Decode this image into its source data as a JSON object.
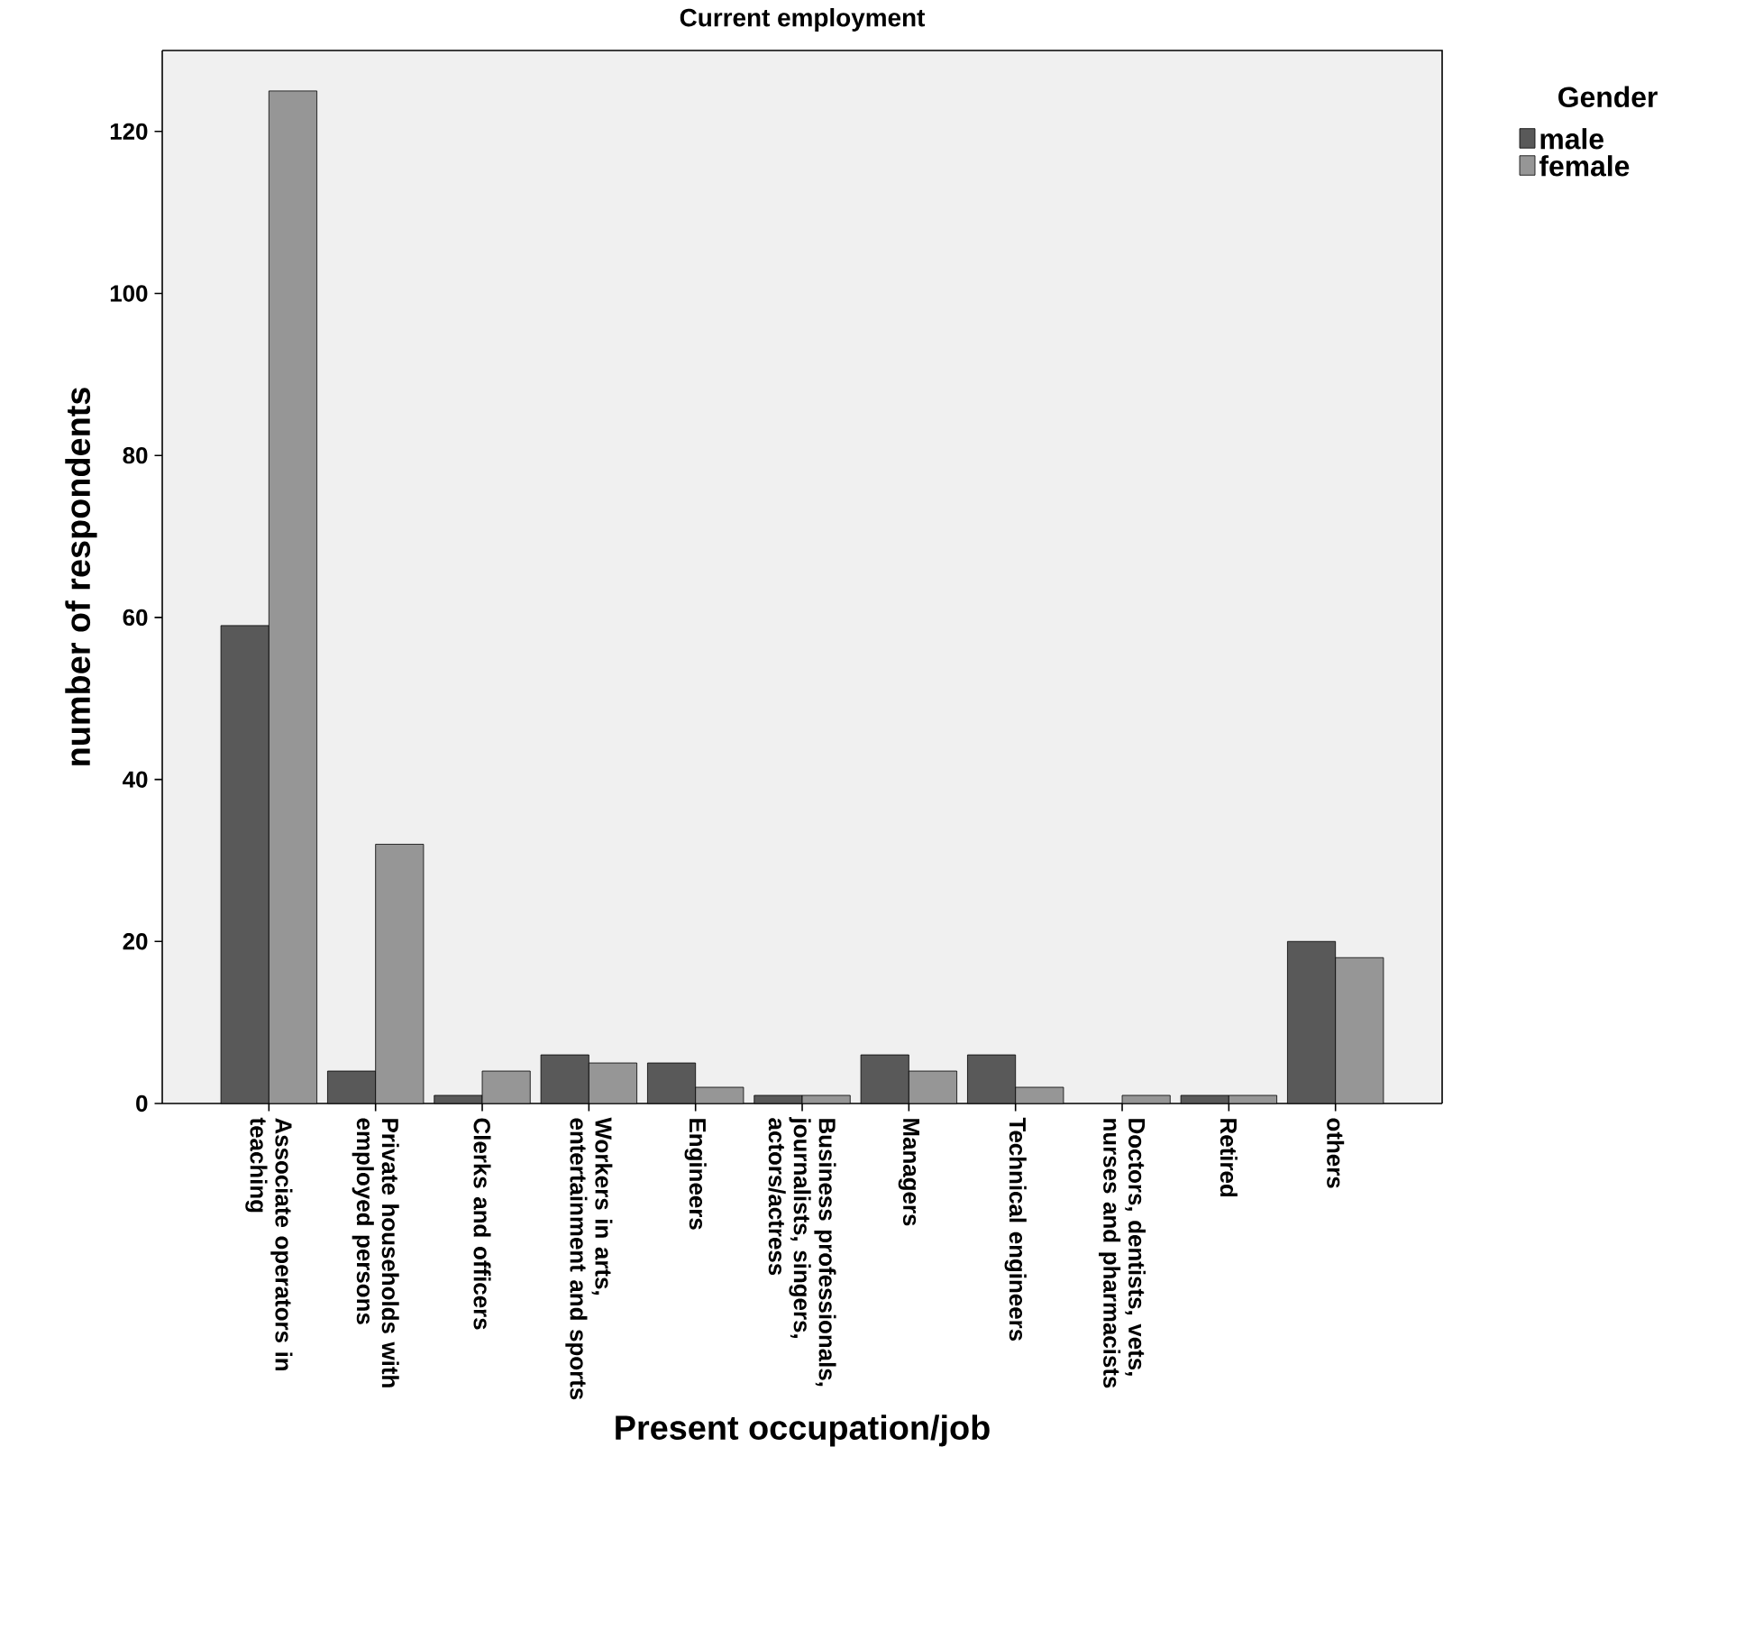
{
  "chart_data": {
    "type": "bar",
    "title": "Current employment",
    "xlabel": "Present occupation/job",
    "ylabel": "number of respondents",
    "legend_title": "Gender",
    "legend": "top right",
    "categories": [
      "Associate operators in teaching",
      "Private households with employed persons",
      "Clerks and officers",
      "Workers in arts, entertainment and sports",
      "Engineers",
      "Business professionals, journalists, singers, actors/actress",
      "Managers",
      "Technical engineers",
      "Doctors, dentists, vets, nurses and pharmacists",
      "Retired",
      "others"
    ],
    "series": [
      {
        "name": "male",
        "color": "#595959",
        "values": [
          59,
          4,
          1,
          6,
          5,
          1,
          6,
          6,
          null,
          1,
          20
        ]
      },
      {
        "name": "female",
        "color": "#969696",
        "values": [
          125,
          32,
          4,
          5,
          2,
          1,
          4,
          2,
          1,
          1,
          18
        ]
      }
    ],
    "ylim": [
      0,
      130
    ],
    "yticks": [
      0,
      20,
      40,
      60,
      80,
      100,
      120
    ]
  }
}
